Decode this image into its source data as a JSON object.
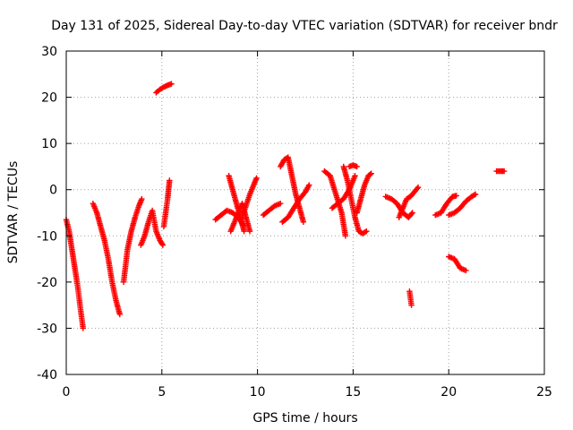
{
  "chart_data": {
    "type": "scatter",
    "title": "Day 131 of 2025, Sidereal Day-to-day VTEC variation (SDTVAR) for receiver bndr",
    "xlabel": "GPS time / hours",
    "ylabel": "SDTVAR / TECUs",
    "xlim": [
      0,
      25
    ],
    "ylim": [
      -40,
      30
    ],
    "xticks": [
      0,
      5,
      10,
      15,
      20,
      25
    ],
    "yticks": [
      -40,
      -30,
      -20,
      -10,
      0,
      10,
      20,
      30
    ],
    "xtick_labels": [
      "0",
      "5",
      "10",
      "15",
      "20",
      "25"
    ],
    "ytick_labels": [
      "-40",
      "-30",
      "-20",
      "-10",
      "0",
      "10",
      "20",
      "30"
    ],
    "grid": true,
    "marker": "plus",
    "color": "#ff0000",
    "series": [
      {
        "x": [
          0.0,
          0.15,
          0.3,
          0.45,
          0.6,
          0.75,
          0.88
        ],
        "y": [
          -6.5,
          -9,
          -13,
          -17,
          -21,
          -26,
          -30
        ]
      },
      {
        "x": [
          1.4,
          1.6,
          1.8,
          2.0,
          2.2,
          2.4,
          2.6,
          2.8
        ],
        "y": [
          -3,
          -5,
          -8,
          -11,
          -15,
          -20,
          -24,
          -27
        ]
      },
      {
        "x": [
          3.0,
          3.2,
          3.4,
          3.6,
          3.8,
          3.95
        ],
        "y": [
          -20,
          -13,
          -9,
          -6,
          -3.5,
          -2
        ]
      },
      {
        "x": [
          3.9,
          4.1,
          4.3,
          4.5,
          4.7,
          4.9,
          5.05
        ],
        "y": [
          -12,
          -10,
          -7,
          -4.5,
          -9,
          -11,
          -12
        ]
      },
      {
        "x": [
          5.1,
          5.2,
          5.3,
          5.35,
          5.4
        ],
        "y": [
          -8,
          -5,
          -2,
          0,
          2
        ]
      },
      {
        "x": [
          4.7,
          4.9,
          5.1,
          5.3,
          5.5
        ],
        "y": [
          21,
          21.7,
          22.2,
          22.6,
          22.9
        ]
      },
      {
        "x": [
          7.8,
          8.1,
          8.4,
          8.7,
          9.0,
          9.3
        ],
        "y": [
          -6.5,
          -5.5,
          -4.5,
          -5,
          -6,
          -8
        ]
      },
      {
        "x": [
          8.5,
          8.7,
          8.9,
          9.1,
          9.3
        ],
        "y": [
          3,
          0,
          -3,
          -6,
          -9
        ]
      },
      {
        "x": [
          8.6,
          8.8,
          9.0,
          9.2,
          9.4,
          9.6
        ],
        "y": [
          -9,
          -7,
          -5,
          -3,
          -6,
          -9
        ]
      },
      {
        "x": [
          9.2,
          9.4,
          9.6,
          9.8,
          9.95
        ],
        "y": [
          -6,
          -3.5,
          -1,
          1,
          2.5
        ]
      },
      {
        "x": [
          10.3,
          10.6,
          10.9,
          11.2
        ],
        "y": [
          -5.5,
          -4.5,
          -3.5,
          -3
        ]
      },
      {
        "x": [
          11.2,
          11.4,
          11.6,
          11.8,
          12.0,
          12.2,
          12.4
        ],
        "y": [
          5,
          6.5,
          7,
          3,
          -1,
          -4,
          -7
        ]
      },
      {
        "x": [
          11.3,
          11.6,
          11.9,
          12.2,
          12.5,
          12.7
        ],
        "y": [
          -7,
          -6,
          -4,
          -2,
          -0.5,
          1
        ]
      },
      {
        "x": [
          13.5,
          13.8,
          14.1,
          14.4,
          14.6
        ],
        "y": [
          4,
          3,
          -1,
          -5,
          -10
        ]
      },
      {
        "x": [
          13.9,
          14.2,
          14.5,
          14.8,
          15.1
        ],
        "y": [
          -4,
          -3,
          -2,
          0,
          3
        ]
      },
      {
        "x": [
          14.5,
          14.7,
          14.9,
          15.1,
          15.3,
          15.5,
          15.7
        ],
        "y": [
          5,
          2,
          -2,
          -6,
          -9,
          -9.5,
          -9
        ]
      },
      {
        "x": [
          14.8,
          15.0,
          15.2
        ],
        "y": [
          5,
          5.3,
          5
        ]
      },
      {
        "x": [
          15.2,
          15.4,
          15.6,
          15.8,
          15.95
        ],
        "y": [
          -5,
          -2,
          1,
          3,
          3.5
        ]
      },
      {
        "x": [
          16.7,
          17.0,
          17.3,
          17.6,
          17.9,
          18.1
        ],
        "y": [
          -1.5,
          -2,
          -3,
          -5,
          -6,
          -5
        ]
      },
      {
        "x": [
          17.4,
          17.6,
          17.8,
          18.0,
          18.2,
          18.4
        ],
        "y": [
          -6,
          -4,
          -2,
          -1.5,
          -0.5,
          0.5
        ]
      },
      {
        "x": [
          17.95,
          18.0,
          18.05
        ],
        "y": [
          -22,
          -23.5,
          -25
        ]
      },
      {
        "x": [
          19.3,
          19.6,
          19.9,
          20.2,
          20.4
        ],
        "y": [
          -5.5,
          -5,
          -3,
          -1.5,
          -1.3
        ]
      },
      {
        "x": [
          20.0,
          20.3,
          20.6,
          20.9,
          21.2,
          21.4
        ],
        "y": [
          -5.5,
          -5,
          -4,
          -2.5,
          -1.5,
          -1
        ]
      },
      {
        "x": [
          20.0,
          20.3,
          20.6,
          20.9
        ],
        "y": [
          -14.5,
          -15,
          -17,
          -17.5
        ]
      },
      {
        "x": [
          22.5,
          22.7,
          22.9
        ],
        "y": [
          4,
          4,
          4
        ]
      }
    ]
  }
}
